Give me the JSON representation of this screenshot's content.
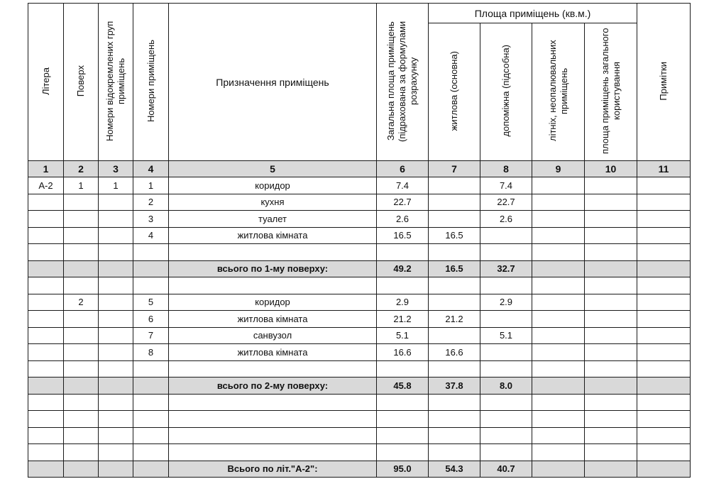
{
  "header": {
    "col1": "Літера",
    "col2": "Поверх",
    "col3": "Номери відокремлених груп приміщень",
    "col4": "Номери приміщень",
    "col5": "Призначення приміщень",
    "col6": "Загальна площа приміщень (підрахована за формулами розрахунку",
    "group": "Площа приміщень (кв.м.)",
    "col7": "житлова (основна)",
    "col8": "допоміжна (підсобна)",
    "col9": "літніх, неопалювальних приміщень",
    "col10": "площа приміщень загального користування",
    "col11": "Примітки"
  },
  "column_numbers": [
    "1",
    "2",
    "3",
    "4",
    "5",
    "6",
    "7",
    "8",
    "9",
    "10",
    "11"
  ],
  "rows": [
    {
      "total": false,
      "cells": [
        "А-2",
        "1",
        "1",
        "1",
        "коридор",
        "7.4",
        "",
        "7.4",
        "",
        "",
        ""
      ]
    },
    {
      "total": false,
      "cells": [
        "",
        "",
        "",
        "2",
        "кухня",
        "22.7",
        "",
        "22.7",
        "",
        "",
        ""
      ]
    },
    {
      "total": false,
      "cells": [
        "",
        "",
        "",
        "3",
        "туалет",
        "2.6",
        "",
        "2.6",
        "",
        "",
        ""
      ]
    },
    {
      "total": false,
      "cells": [
        "",
        "",
        "",
        "4",
        "житлова кімната",
        "16.5",
        "16.5",
        "",
        "",
        "",
        ""
      ]
    },
    {
      "total": false,
      "cells": [
        "",
        "",
        "",
        "",
        "",
        "",
        "",
        "",
        "",
        "",
        ""
      ]
    },
    {
      "total": true,
      "cells": [
        "",
        "",
        "",
        "",
        "всього по 1-му поверху:",
        "49.2",
        "16.5",
        "32.7",
        "",
        "",
        ""
      ]
    },
    {
      "total": false,
      "cells": [
        "",
        "",
        "",
        "",
        "",
        "",
        "",
        "",
        "",
        "",
        ""
      ]
    },
    {
      "total": false,
      "cells": [
        "",
        "2",
        "",
        "5",
        "коридор",
        "2.9",
        "",
        "2.9",
        "",
        "",
        ""
      ]
    },
    {
      "total": false,
      "cells": [
        "",
        "",
        "",
        "6",
        "житлова кімната",
        "21.2",
        "21.2",
        "",
        "",
        "",
        ""
      ]
    },
    {
      "total": false,
      "cells": [
        "",
        "",
        "",
        "7",
        "санвузол",
        "5.1",
        "",
        "5.1",
        "",
        "",
        ""
      ]
    },
    {
      "total": false,
      "cells": [
        "",
        "",
        "",
        "8",
        "житлова кімната",
        "16.6",
        "16.6",
        "",
        "",
        "",
        ""
      ]
    },
    {
      "total": false,
      "cells": [
        "",
        "",
        "",
        "",
        "",
        "",
        "",
        "",
        "",
        "",
        ""
      ]
    },
    {
      "total": true,
      "cells": [
        "",
        "",
        "",
        "",
        "всього по 2-му поверху:",
        "45.8",
        "37.8",
        "8.0",
        "",
        "",
        ""
      ]
    },
    {
      "total": false,
      "cells": [
        "",
        "",
        "",
        "",
        "",
        "",
        "",
        "",
        "",
        "",
        ""
      ]
    },
    {
      "total": false,
      "cells": [
        "",
        "",
        "",
        "",
        "",
        "",
        "",
        "",
        "",
        "",
        ""
      ]
    },
    {
      "total": false,
      "cells": [
        "",
        "",
        "",
        "",
        "",
        "",
        "",
        "",
        "",
        "",
        ""
      ]
    },
    {
      "total": false,
      "cells": [
        "",
        "",
        "",
        "",
        "",
        "",
        "",
        "",
        "",
        "",
        ""
      ]
    },
    {
      "total": true,
      "cells": [
        "",
        "",
        "",
        "",
        "Всього по літ.\"А-2\":",
        "95.0",
        "54.3",
        "40.7",
        "",
        "",
        ""
      ]
    }
  ],
  "colors": {
    "shade": "#d9d9d9",
    "border": "#1a1a1a"
  }
}
